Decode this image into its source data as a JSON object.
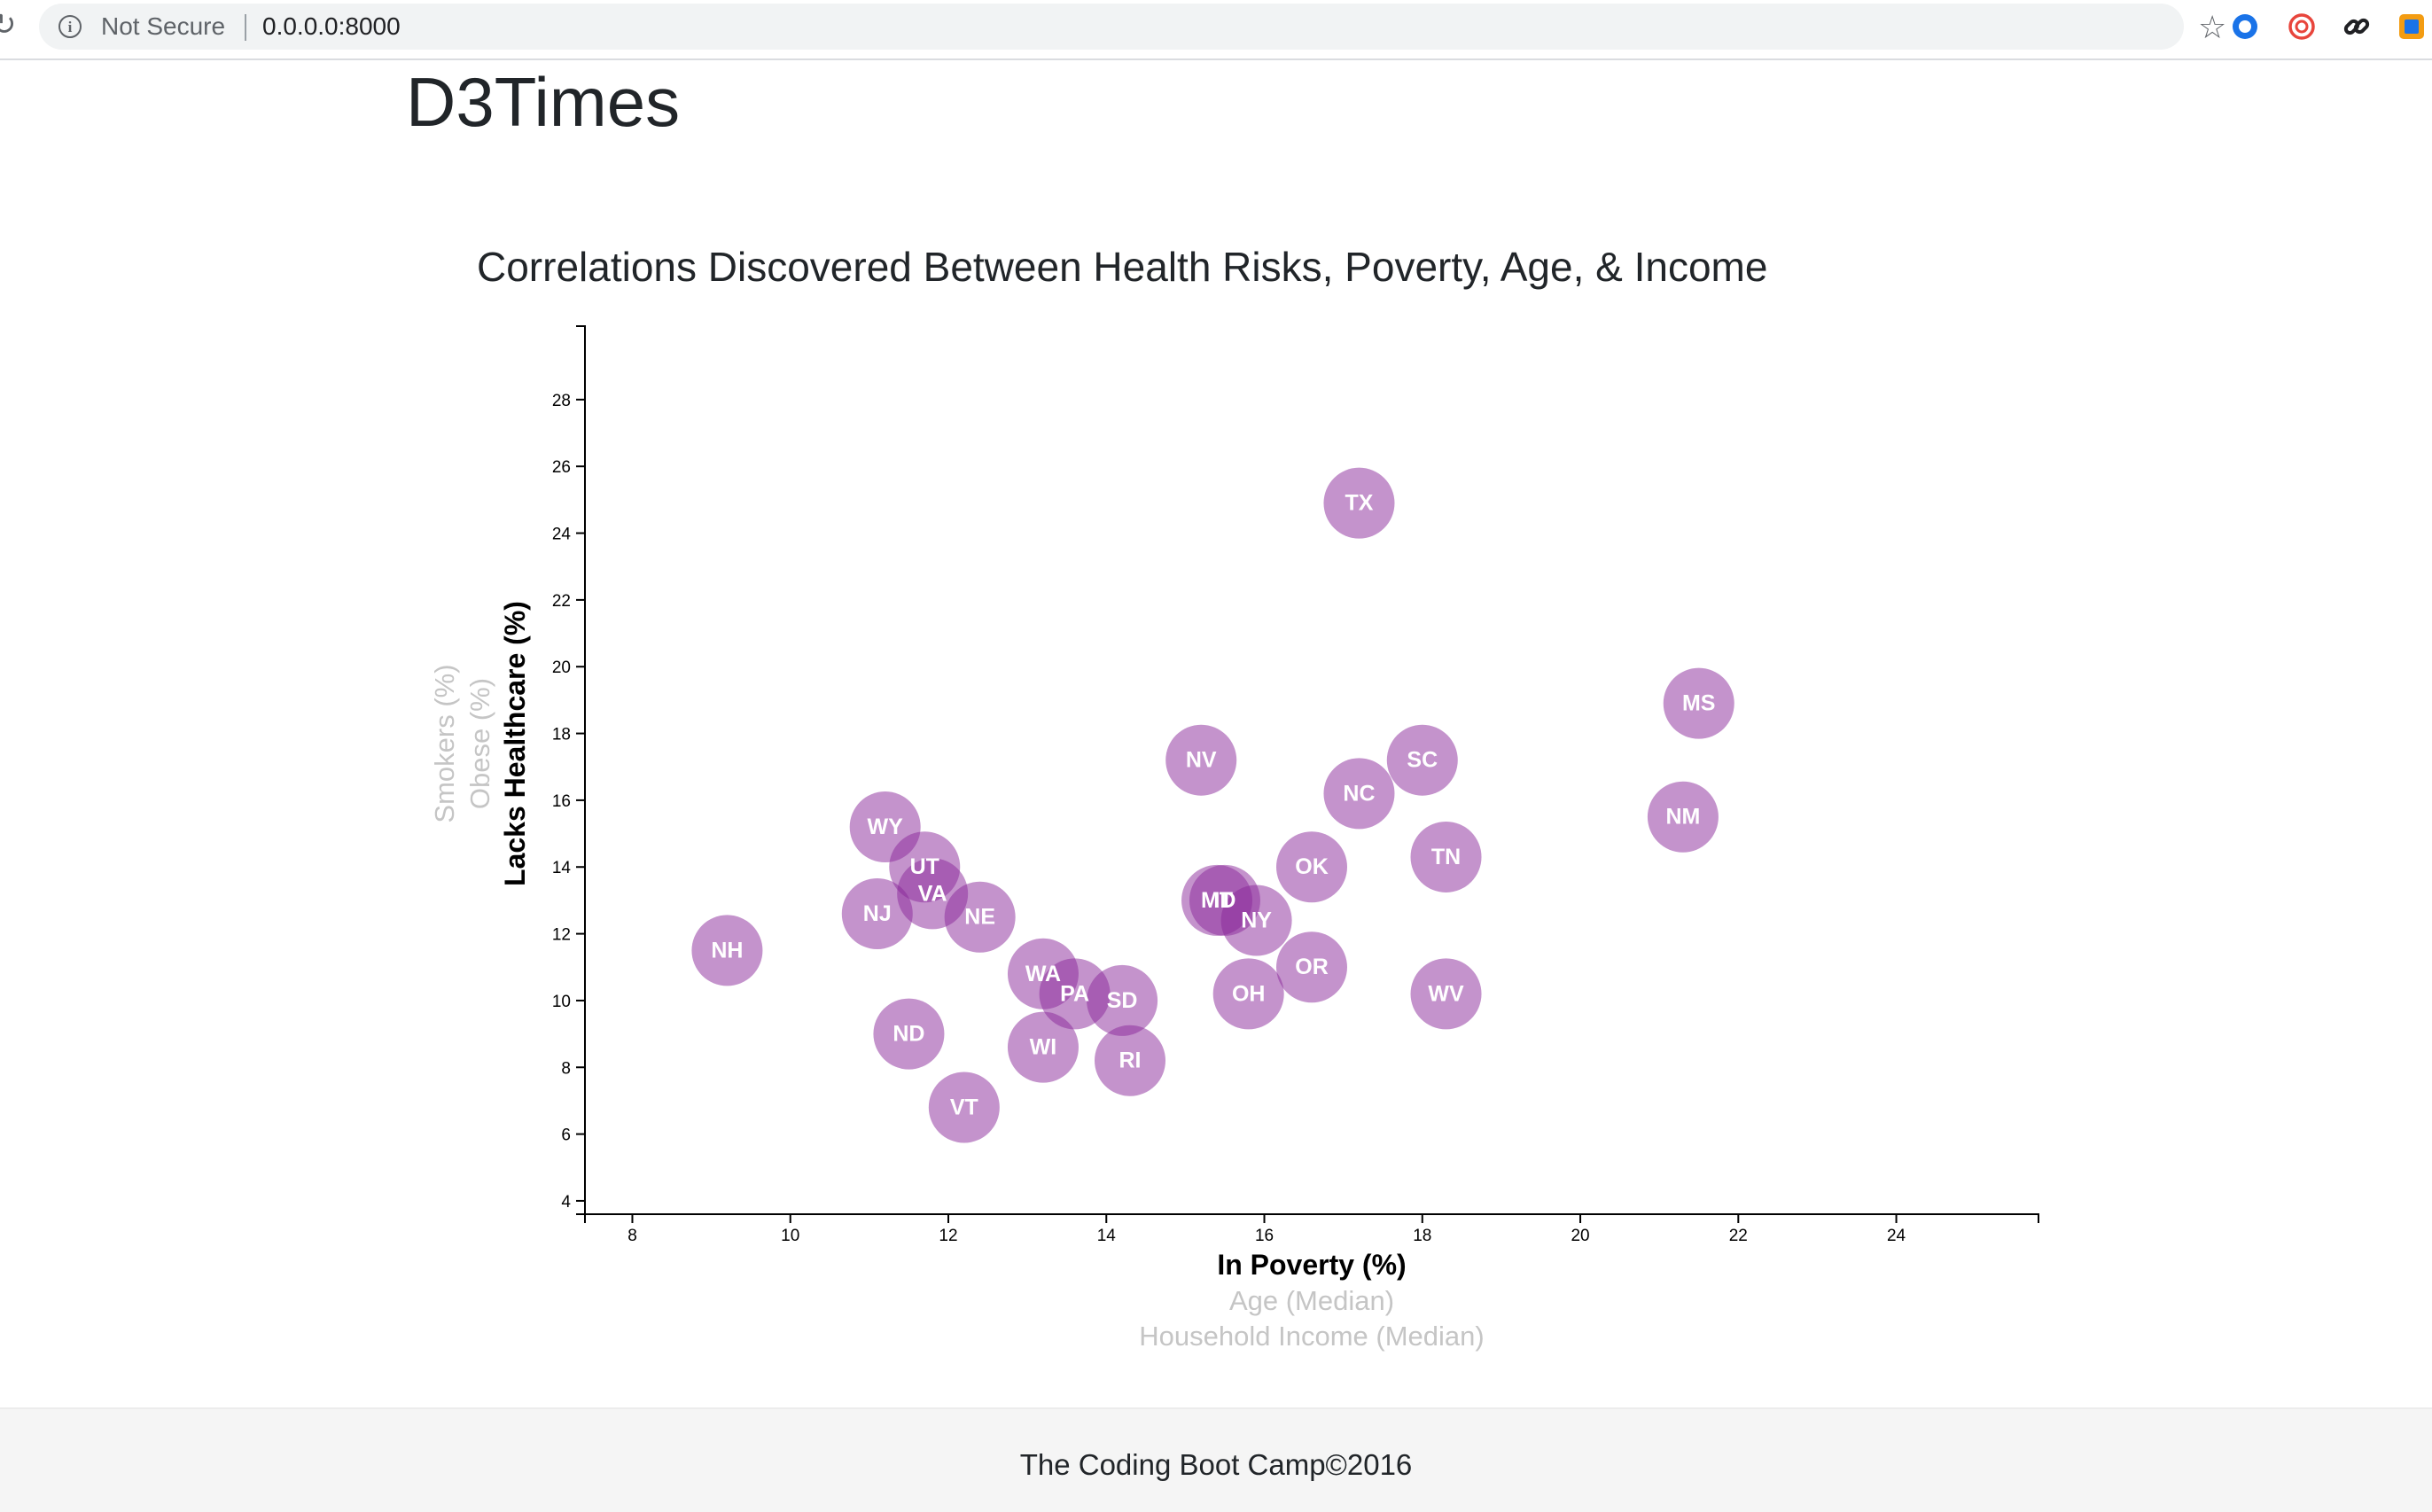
{
  "browser": {
    "security_label": "Not Secure",
    "url": "0.0.0.0:8000",
    "icons": [
      "reload-icon",
      "info-icon",
      "star-icon",
      "extension-blue-icon",
      "extension-red-icon",
      "link-icon",
      "extension-orange-icon"
    ]
  },
  "page": {
    "site_title": "D3Times",
    "footer": "The Coding Boot Camp©2016"
  },
  "colors": {
    "marker": "#89279a",
    "active_label": "#000000",
    "inactive_label": "#c5c5c5"
  },
  "chart_data": {
    "type": "scatter",
    "title": "Correlations Discovered Between Health Risks, Poverty, Age, & Income",
    "xlim": [
      7.4,
      25.8
    ],
    "ylim": [
      3.6,
      30.2
    ],
    "x_ticks": [
      8,
      10,
      12,
      14,
      16,
      18,
      20,
      22,
      24
    ],
    "y_ticks": [
      4,
      6,
      8,
      10,
      12,
      14,
      16,
      18,
      20,
      22,
      24,
      26,
      28
    ],
    "x_axis_labels": [
      {
        "text": "In Poverty (%)",
        "active": true
      },
      {
        "text": "Age (Median)",
        "active": false
      },
      {
        "text": "Household Income (Median)",
        "active": false
      }
    ],
    "y_axis_labels": [
      {
        "text": "Lacks Healthcare (%)",
        "active": true
      },
      {
        "text": "Obese (%)",
        "active": false
      },
      {
        "text": "Smokers (%)",
        "active": false
      }
    ],
    "grid": false,
    "points": [
      {
        "abbr": "TX",
        "x": 17.2,
        "y": 24.9
      },
      {
        "abbr": "MS",
        "x": 21.5,
        "y": 18.9
      },
      {
        "abbr": "NV",
        "x": 15.2,
        "y": 17.2
      },
      {
        "abbr": "SC",
        "x": 18.0,
        "y": 17.2
      },
      {
        "abbr": "NC",
        "x": 17.2,
        "y": 16.2
      },
      {
        "abbr": "NM",
        "x": 21.3,
        "y": 15.5
      },
      {
        "abbr": "WY",
        "x": 11.2,
        "y": 15.2
      },
      {
        "abbr": "TN",
        "x": 18.3,
        "y": 14.3
      },
      {
        "abbr": "UT",
        "x": 11.7,
        "y": 14.0
      },
      {
        "abbr": "OK",
        "x": 16.6,
        "y": 14.0
      },
      {
        "abbr": "VA",
        "x": 11.8,
        "y": 13.2
      },
      {
        "abbr": "MT",
        "x": 15.4,
        "y": 13.0
      },
      {
        "abbr": "ID",
        "x": 15.5,
        "y": 13.0
      },
      {
        "abbr": "NJ",
        "x": 11.1,
        "y": 12.6
      },
      {
        "abbr": "NE",
        "x": 12.4,
        "y": 12.5
      },
      {
        "abbr": "NY",
        "x": 15.9,
        "y": 12.4
      },
      {
        "abbr": "NH",
        "x": 9.2,
        "y": 11.5
      },
      {
        "abbr": "OR",
        "x": 16.6,
        "y": 11.0
      },
      {
        "abbr": "WA",
        "x": 13.2,
        "y": 10.8
      },
      {
        "abbr": "PA",
        "x": 13.6,
        "y": 10.2
      },
      {
        "abbr": "OH",
        "x": 15.8,
        "y": 10.2
      },
      {
        "abbr": "WV",
        "x": 18.3,
        "y": 10.2
      },
      {
        "abbr": "SD",
        "x": 14.2,
        "y": 10.0
      },
      {
        "abbr": "ND",
        "x": 11.5,
        "y": 9.0
      },
      {
        "abbr": "WI",
        "x": 13.2,
        "y": 8.6
      },
      {
        "abbr": "RI",
        "x": 14.3,
        "y": 8.2
      },
      {
        "abbr": "VT",
        "x": 12.2,
        "y": 6.8
      }
    ]
  }
}
